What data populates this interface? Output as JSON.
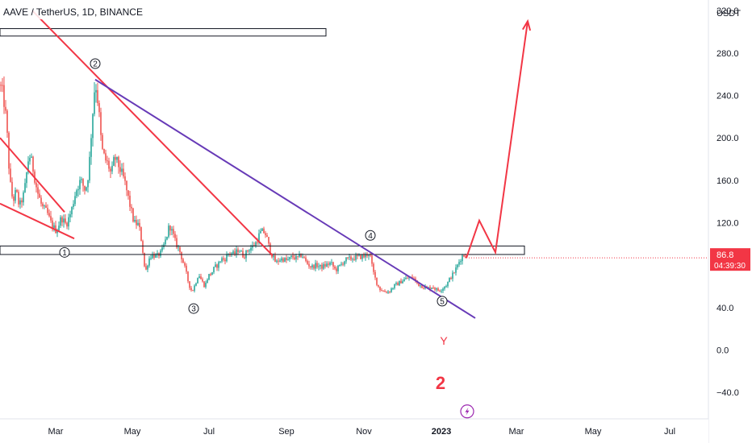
{
  "chart_data": {
    "type": "candlestick",
    "title": "AAVE / TetherUS, 1D, BINANCE",
    "currency": "USDT",
    "y_axis": {
      "range": [
        -65,
        330
      ],
      "ticks": [
        "320.0",
        "280.0",
        "240.0",
        "200.0",
        "160.0",
        "120.0",
        "40.0",
        "0.0",
        "−40.0"
      ]
    },
    "x_axis": {
      "ticks": [
        "Mar",
        "May",
        "Jul",
        "Sep",
        "Nov",
        "2023",
        "Mar",
        "May",
        "Jul"
      ]
    },
    "last_price": {
      "value": 86.8,
      "label": "86.8",
      "countdown": "04:39:30",
      "color": "#f23645"
    },
    "colors": {
      "up": "#26a69a",
      "down": "#ef5350",
      "trend_red": "#f23645",
      "trend_purple": "#673ab7"
    },
    "price_path": [
      [
        0,
        250
      ],
      [
        4,
        240
      ],
      [
        8,
        215
      ],
      [
        12,
        160
      ],
      [
        16,
        140
      ],
      [
        20,
        150
      ],
      [
        24,
        135
      ],
      [
        30,
        148
      ],
      [
        36,
        185
      ],
      [
        40,
        175
      ],
      [
        46,
        150
      ],
      [
        52,
        135
      ],
      [
        58,
        130
      ],
      [
        64,
        118
      ],
      [
        70,
        112
      ],
      [
        76,
        125
      ],
      [
        82,
        118
      ],
      [
        88,
        130
      ],
      [
        94,
        150
      ],
      [
        100,
        160
      ],
      [
        106,
        150
      ],
      [
        110,
        168
      ],
      [
        114,
        215
      ],
      [
        118,
        255
      ],
      [
        122,
        230
      ],
      [
        126,
        190
      ],
      [
        130,
        180
      ],
      [
        134,
        175
      ],
      [
        138,
        165
      ],
      [
        142,
        182
      ],
      [
        148,
        172
      ],
      [
        154,
        160
      ],
      [
        160,
        140
      ],
      [
        166,
        120
      ],
      [
        172,
        118
      ],
      [
        176,
        100
      ],
      [
        180,
        72
      ],
      [
        184,
        85
      ],
      [
        188,
        90
      ],
      [
        194,
        88
      ],
      [
        200,
        92
      ],
      [
        206,
        105
      ],
      [
        210,
        118
      ],
      [
        214,
        110
      ],
      [
        218,
        100
      ],
      [
        222,
        95
      ],
      [
        226,
        85
      ],
      [
        230,
        75
      ],
      [
        234,
        62
      ],
      [
        238,
        55
      ],
      [
        242,
        62
      ],
      [
        246,
        72
      ],
      [
        250,
        65
      ],
      [
        254,
        60
      ],
      [
        258,
        70
      ],
      [
        262,
        72
      ],
      [
        266,
        78
      ],
      [
        270,
        80
      ],
      [
        274,
        86
      ],
      [
        278,
        85
      ],
      [
        284,
        92
      ],
      [
        290,
        90
      ],
      [
        296,
        95
      ],
      [
        302,
        88
      ],
      [
        308,
        95
      ],
      [
        314,
        98
      ],
      [
        318,
        102
      ],
      [
        322,
        110
      ],
      [
        326,
        112
      ],
      [
        330,
        108
      ],
      [
        334,
        95
      ],
      [
        338,
        88
      ],
      [
        342,
        82
      ],
      [
        346,
        85
      ],
      [
        350,
        86
      ],
      [
        356,
        84
      ],
      [
        362,
        88
      ],
      [
        368,
        86
      ],
      [
        374,
        90
      ],
      [
        380,
        82
      ],
      [
        386,
        78
      ],
      [
        392,
        80
      ],
      [
        398,
        78
      ],
      [
        404,
        80
      ],
      [
        410,
        82
      ],
      [
        416,
        75
      ],
      [
        422,
        80
      ],
      [
        428,
        85
      ],
      [
        434,
        86
      ],
      [
        440,
        87
      ],
      [
        446,
        88
      ],
      [
        452,
        88
      ],
      [
        458,
        92
      ],
      [
        462,
        75
      ],
      [
        466,
        65
      ],
      [
        470,
        58
      ],
      [
        476,
        55
      ],
      [
        482,
        55
      ],
      [
        488,
        60
      ],
      [
        494,
        63
      ],
      [
        500,
        66
      ],
      [
        506,
        68
      ],
      [
        512,
        68
      ],
      [
        518,
        62
      ],
      [
        524,
        60
      ],
      [
        530,
        58
      ],
      [
        536,
        60
      ],
      [
        542,
        56
      ],
      [
        548,
        58
      ],
      [
        554,
        62
      ],
      [
        558,
        68
      ],
      [
        562,
        72
      ],
      [
        566,
        78
      ],
      [
        570,
        85
      ],
      [
        574,
        90
      ],
      [
        578,
        86.8
      ]
    ],
    "projection": [
      [
        578,
        86.8
      ],
      [
        594,
        122
      ],
      [
        614,
        92
      ],
      [
        654,
        310
      ]
    ],
    "trendlines": [
      {
        "color": "red",
        "from": [
          40,
          320
        ],
        "to": [
          338,
          89
        ]
      },
      {
        "color": "red",
        "from": [
          0,
          200
        ],
        "to": [
          80,
          130
        ]
      },
      {
        "color": "red",
        "from": [
          0,
          138
        ],
        "to": [
          92,
          105
        ]
      },
      {
        "color": "purple",
        "from": [
          118,
          255
        ],
        "to": [
          589,
          30
        ]
      }
    ],
    "zones": [
      {
        "x1": 0,
        "x2": 404,
        "y1": 303,
        "y2": 296
      },
      {
        "x1": 0,
        "x2": 650,
        "y1": 98,
        "y2": 90
      }
    ],
    "wave_labels": [
      {
        "text": "1",
        "x": 80,
        "y": 92
      },
      {
        "text": "2",
        "x": 118,
        "y": 270
      },
      {
        "text": "3",
        "x": 240,
        "y": 39
      },
      {
        "text": "4",
        "x": 459,
        "y": 108
      },
      {
        "text": "5",
        "x": 548,
        "y": 46
      }
    ],
    "annotations": [
      {
        "text": "Y",
        "x": 550,
        "y": 5,
        "size": 14,
        "weight": "normal"
      },
      {
        "text": "2",
        "x": 546,
        "y": -37,
        "size": 22,
        "weight": "bold"
      }
    ],
    "lightning_icon": {
      "x": 579,
      "y": -58
    }
  }
}
